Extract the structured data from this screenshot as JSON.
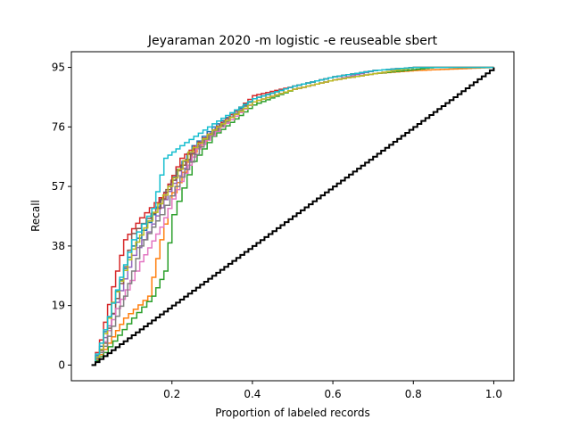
{
  "chart_data": {
    "type": "line",
    "title": "Jeyaraman 2020 -m logistic -e reuseable sbert",
    "xlabel": "Proportion of labeled records",
    "ylabel": "Recall",
    "xlim": [
      -0.05,
      1.05
    ],
    "ylim": [
      -5,
      100
    ],
    "x_ticks": [
      0.2,
      0.4,
      0.6,
      0.8,
      1.0
    ],
    "x_tick_labels": [
      "0.2",
      "0.4",
      "0.6",
      "0.8",
      "1.0"
    ],
    "y_ticks": [
      0,
      19,
      38,
      57,
      76,
      95
    ],
    "y_tick_labels": [
      "0",
      "19",
      "38",
      "57",
      "76",
      "95"
    ],
    "grid": false,
    "legend": "none",
    "random_baseline": {
      "color": "#000000",
      "points": [
        [
          0,
          0
        ],
        [
          0.5,
          47.5
        ],
        [
          1.0,
          95
        ]
      ]
    },
    "curve_colors": [
      "#1f77b4",
      "#ff7f0e",
      "#2ca02c",
      "#d62728",
      "#9467bd",
      "#8c564b",
      "#e377c2",
      "#7f7f7f",
      "#bcbd22",
      "#17becf"
    ],
    "series": [
      {
        "color": "#1f77b4",
        "points": [
          [
            0,
            0
          ],
          [
            0.02,
            6
          ],
          [
            0.05,
            20
          ],
          [
            0.1,
            38
          ],
          [
            0.15,
            48
          ],
          [
            0.2,
            60
          ],
          [
            0.25,
            70
          ],
          [
            0.3,
            76
          ],
          [
            0.4,
            85
          ],
          [
            0.5,
            89
          ],
          [
            0.6,
            92
          ],
          [
            0.7,
            94
          ],
          [
            0.8,
            95
          ],
          [
            1.0,
            95
          ]
        ]
      },
      {
        "color": "#ff7f0e",
        "points": [
          [
            0,
            0
          ],
          [
            0.03,
            5
          ],
          [
            0.08,
            15
          ],
          [
            0.14,
            22
          ],
          [
            0.17,
            40
          ],
          [
            0.2,
            55
          ],
          [
            0.25,
            68
          ],
          [
            0.3,
            75
          ],
          [
            0.4,
            84
          ],
          [
            0.5,
            88
          ],
          [
            0.6,
            91
          ],
          [
            0.7,
            93
          ],
          [
            0.8,
            94
          ],
          [
            1.0,
            95
          ]
        ]
      },
      {
        "color": "#2ca02c",
        "points": [
          [
            0,
            0
          ],
          [
            0.03,
            4
          ],
          [
            0.1,
            15
          ],
          [
            0.15,
            22
          ],
          [
            0.18,
            30
          ],
          [
            0.2,
            48
          ],
          [
            0.25,
            65
          ],
          [
            0.3,
            73
          ],
          [
            0.4,
            83
          ],
          [
            0.5,
            88
          ],
          [
            0.6,
            91
          ],
          [
            0.7,
            93
          ],
          [
            0.85,
            95
          ],
          [
            1.0,
            95
          ]
        ]
      },
      {
        "color": "#d62728",
        "points": [
          [
            0,
            0
          ],
          [
            0.02,
            8
          ],
          [
            0.05,
            25
          ],
          [
            0.08,
            40
          ],
          [
            0.12,
            47
          ],
          [
            0.18,
            55
          ],
          [
            0.22,
            66
          ],
          [
            0.3,
            75
          ],
          [
            0.4,
            86
          ],
          [
            0.5,
            89
          ],
          [
            0.6,
            92
          ],
          [
            0.7,
            94
          ],
          [
            0.8,
            95
          ],
          [
            1.0,
            95
          ]
        ]
      },
      {
        "color": "#9467bd",
        "points": [
          [
            0,
            0
          ],
          [
            0.02,
            5
          ],
          [
            0.06,
            20
          ],
          [
            0.1,
            35
          ],
          [
            0.15,
            45
          ],
          [
            0.2,
            58
          ],
          [
            0.26,
            70
          ],
          [
            0.32,
            77
          ],
          [
            0.4,
            84
          ],
          [
            0.5,
            88
          ],
          [
            0.6,
            91
          ],
          [
            0.7,
            94
          ],
          [
            0.8,
            95
          ],
          [
            1.0,
            95
          ]
        ]
      },
      {
        "color": "#8c564b",
        "points": [
          [
            0,
            0
          ],
          [
            0.03,
            7
          ],
          [
            0.07,
            26
          ],
          [
            0.1,
            42
          ],
          [
            0.16,
            50
          ],
          [
            0.21,
            62
          ],
          [
            0.27,
            71
          ],
          [
            0.33,
            78
          ],
          [
            0.4,
            85
          ],
          [
            0.5,
            89
          ],
          [
            0.6,
            92
          ],
          [
            0.7,
            94
          ],
          [
            0.8,
            95
          ],
          [
            1.0,
            95
          ]
        ]
      },
      {
        "color": "#e377c2",
        "points": [
          [
            0,
            0
          ],
          [
            0.02,
            4
          ],
          [
            0.06,
            18
          ],
          [
            0.12,
            33
          ],
          [
            0.17,
            44
          ],
          [
            0.21,
            56
          ],
          [
            0.26,
            69
          ],
          [
            0.32,
            76
          ],
          [
            0.4,
            84
          ],
          [
            0.5,
            88
          ],
          [
            0.6,
            91
          ],
          [
            0.7,
            93
          ],
          [
            0.8,
            95
          ],
          [
            1.0,
            95
          ]
        ]
      },
      {
        "color": "#7f7f7f",
        "points": [
          [
            0,
            0
          ],
          [
            0.03,
            6
          ],
          [
            0.08,
            22
          ],
          [
            0.12,
            38
          ],
          [
            0.17,
            48
          ],
          [
            0.22,
            60
          ],
          [
            0.28,
            72
          ],
          [
            0.34,
            79
          ],
          [
            0.4,
            85
          ],
          [
            0.5,
            89
          ],
          [
            0.6,
            92
          ],
          [
            0.7,
            94
          ],
          [
            0.8,
            95
          ],
          [
            1.0,
            95
          ]
        ]
      },
      {
        "color": "#bcbd22",
        "points": [
          [
            0,
            0
          ],
          [
            0.02,
            5
          ],
          [
            0.05,
            20
          ],
          [
            0.1,
            37
          ],
          [
            0.14,
            46
          ],
          [
            0.19,
            57
          ],
          [
            0.24,
            68
          ],
          [
            0.3,
            75
          ],
          [
            0.4,
            84
          ],
          [
            0.5,
            88
          ],
          [
            0.6,
            91
          ],
          [
            0.7,
            93
          ],
          [
            0.8,
            95
          ],
          [
            1.0,
            95
          ]
        ]
      },
      {
        "color": "#17becf",
        "points": [
          [
            0,
            0
          ],
          [
            0.02,
            7
          ],
          [
            0.06,
            24
          ],
          [
            0.1,
            40
          ],
          [
            0.15,
            50
          ],
          [
            0.18,
            66
          ],
          [
            0.22,
            70
          ],
          [
            0.3,
            77
          ],
          [
            0.4,
            85
          ],
          [
            0.5,
            89
          ],
          [
            0.6,
            92
          ],
          [
            0.7,
            94
          ],
          [
            0.8,
            95
          ],
          [
            1.0,
            95
          ]
        ]
      }
    ]
  }
}
